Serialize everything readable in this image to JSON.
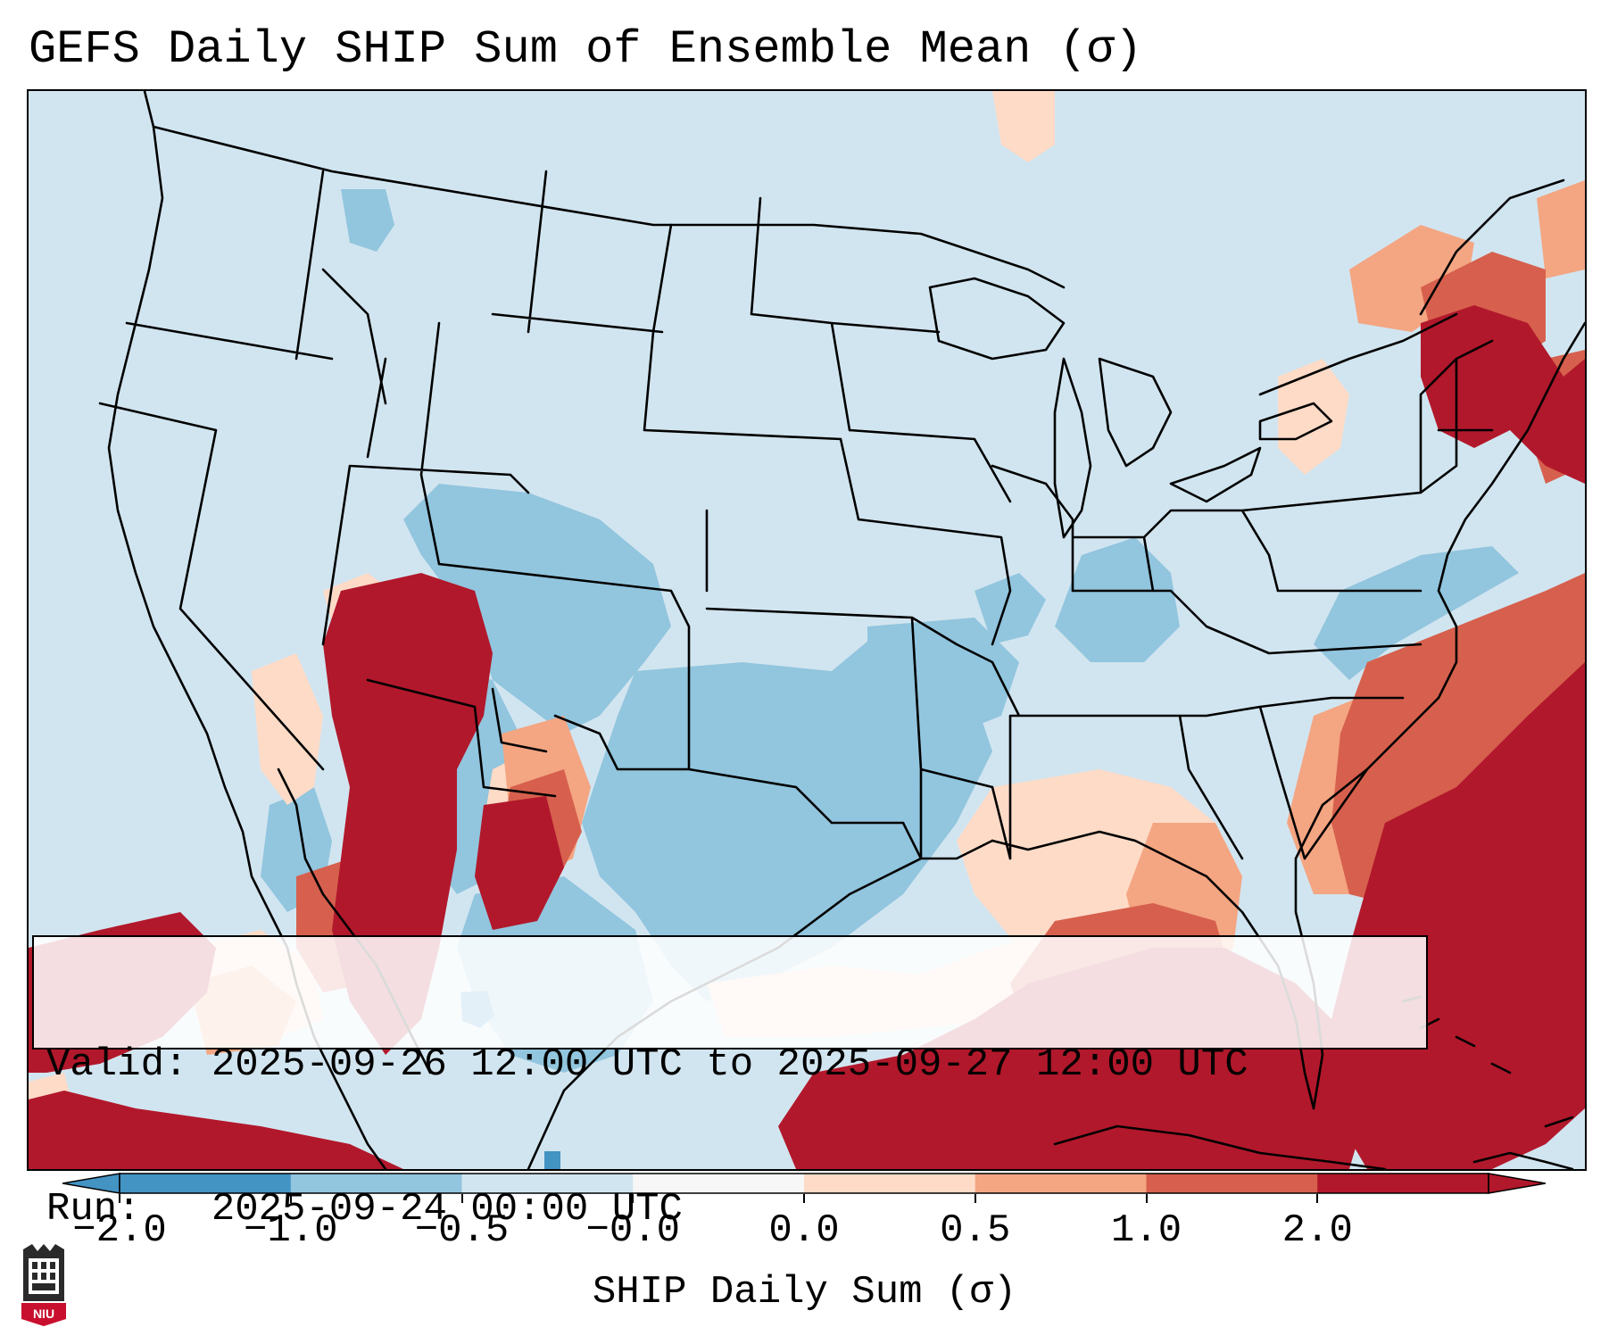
{
  "title": "GEFS Daily SHIP Sum of Ensemble Mean (σ)",
  "info": {
    "valid_label": "Valid:",
    "valid_text": "2025-09-26 12:00 UTC to 2025-09-27 12:00 UTC",
    "run_label": "Run:",
    "run_text": "2025-09-24 00:00 UTC"
  },
  "colorbar": {
    "label": "SHIP Daily Sum (σ)",
    "ticks": [
      "−2.0",
      "−1.0",
      "−0.5",
      "−0.0",
      "0.0",
      "0.5",
      "1.0",
      "2.0"
    ],
    "colors": [
      "#4393c3",
      "#92c5de",
      "#d1e5f0",
      "#f7f7f7",
      "#fddbc7",
      "#f4a582",
      "#d6604d",
      "#b2182b"
    ],
    "extend": "both"
  },
  "logo": {
    "text": "NIU"
  },
  "map": {
    "region": "Contiguous United States, Mexico, Caribbean",
    "projection": "Lambert conformal"
  }
}
